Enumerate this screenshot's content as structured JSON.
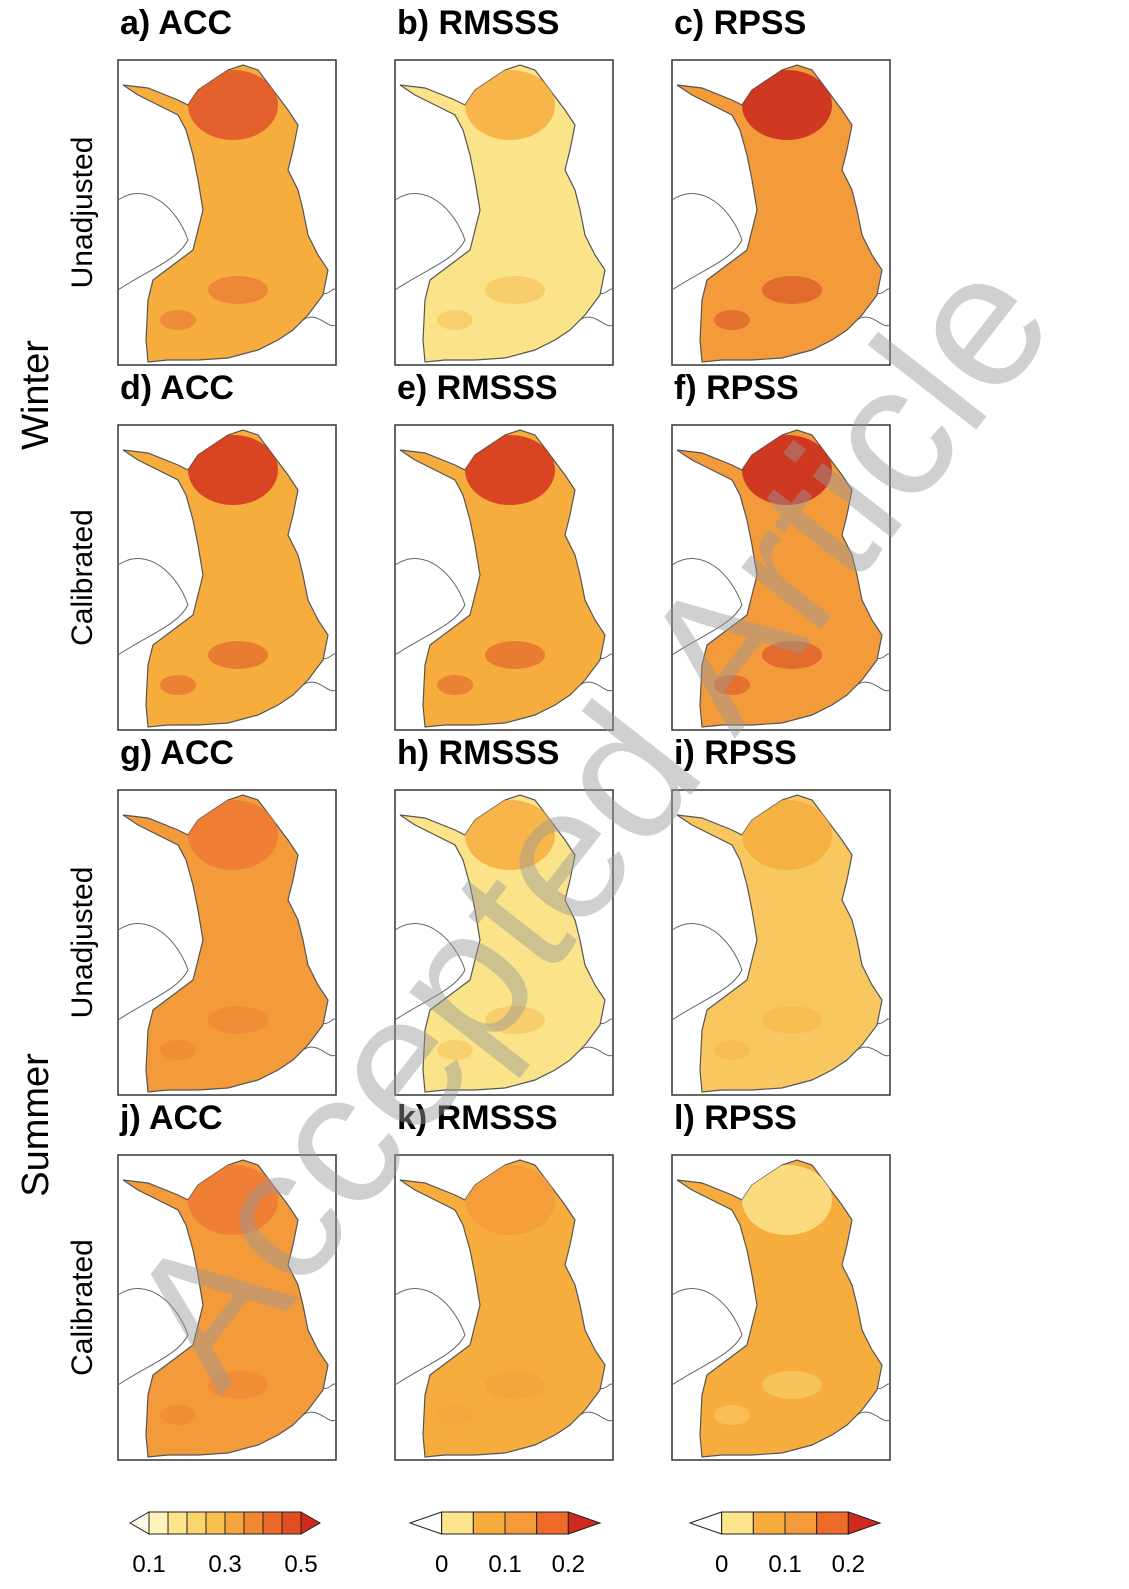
{
  "seasons": [
    "Winter",
    "Summer"
  ],
  "row_labels": [
    "Unadjusted",
    "Calibrated",
    "Unadjusted",
    "Calibrated"
  ],
  "panels": [
    {
      "title": "a) ACC",
      "color": "#f6ad3e",
      "north_color": "#e0522a"
    },
    {
      "title": "b) RMSSS",
      "color": "#fbe38a",
      "north_color": "#f6ad3e"
    },
    {
      "title": "c) RPSS",
      "color": "#f39a3a",
      "north_color": "#c8281e"
    },
    {
      "title": "d) ACC",
      "color": "#f6ad3e",
      "north_color": "#d4331f"
    },
    {
      "title": "e) RMSSS",
      "color": "#f6ad3e",
      "north_color": "#d4331f"
    },
    {
      "title": "f) RPSS",
      "color": "#f39a3a",
      "north_color": "#c8281e"
    },
    {
      "title": "g) ACC",
      "color": "#f39a3a",
      "north_color": "#ee7a35"
    },
    {
      "title": "h) RMSSS",
      "color": "#fbe38a",
      "north_color": "#f6ad3e"
    },
    {
      "title": "i) RPSS",
      "color": "#f8c760",
      "north_color": "#f6ad3e"
    },
    {
      "title": "j) ACC",
      "color": "#f39a3a",
      "north_color": "#ee7a35"
    },
    {
      "title": "k) RMSSS",
      "color": "#f6ad3e",
      "north_color": "#f39a3a"
    },
    {
      "title": "l) RPSS",
      "color": "#f6ad3e",
      "north_color": "#fbe38a"
    }
  ],
  "colorbars": [
    {
      "colors": [
        "#fffbe6",
        "#fff3b8",
        "#fde58c",
        "#fbd56c",
        "#f8c04f",
        "#f5a53c",
        "#f2882f",
        "#ec6a27",
        "#e34d22",
        "#cf2a1d"
      ],
      "ticks": [
        0.1,
        0.3,
        0.5
      ]
    },
    {
      "colors": [
        "#ffffff",
        "#fde58c",
        "#f6ad3e",
        "#f39a3a",
        "#ee6a28",
        "#cf2a1d"
      ],
      "ticks": [
        0,
        0.1,
        0.2
      ]
    },
    {
      "colors": [
        "#ffffff",
        "#fde58c",
        "#f6ad3e",
        "#f39a3a",
        "#ee6a28",
        "#cf2a1d"
      ],
      "ticks": [
        0,
        0.1,
        0.2
      ]
    }
  ],
  "watermark": "Accepted Article"
}
